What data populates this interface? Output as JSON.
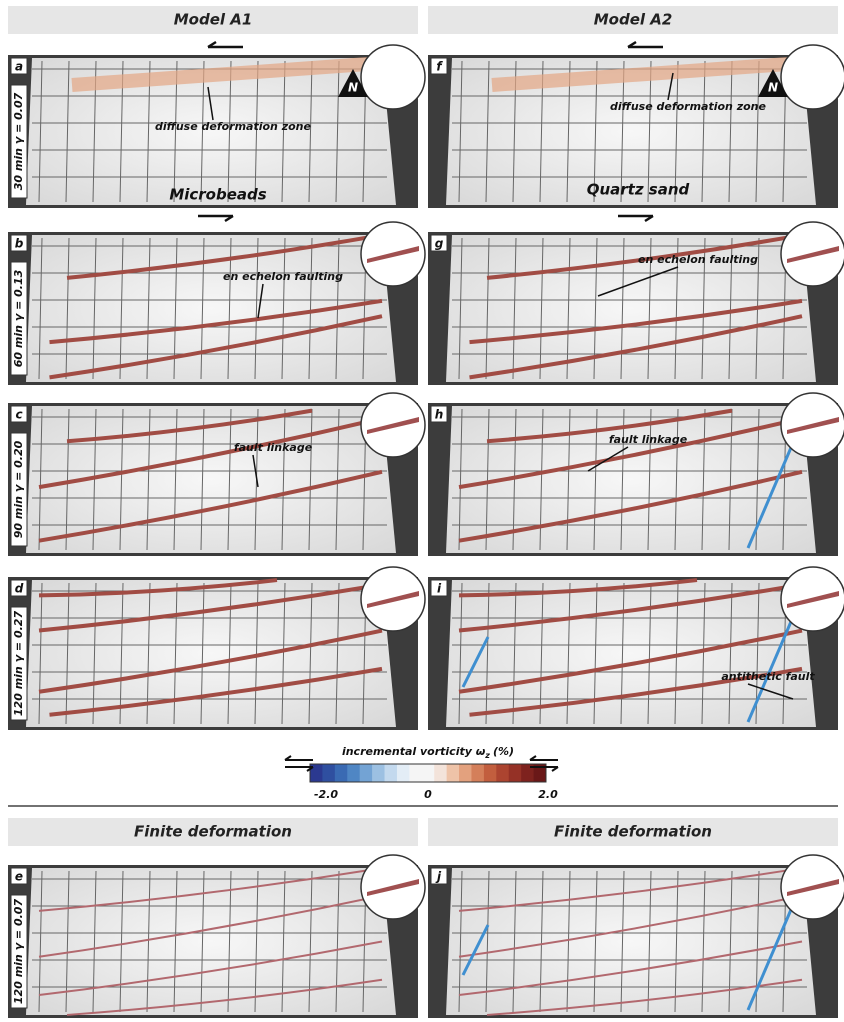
{
  "columns": [
    {
      "header": "Model A1"
    },
    {
      "header": "Model A2"
    }
  ],
  "rows": [
    {
      "left": {
        "letter": "a",
        "side_label": "30 min γ = 0.07",
        "annotations": [
          "diffuse deformation zone",
          "Microbeads"
        ]
      },
      "right": {
        "letter": "f",
        "annotations": [
          "diffuse deformation zone",
          "Quartz sand"
        ]
      }
    },
    {
      "left": {
        "letter": "b",
        "side_label": "60 min γ = 0.13",
        "annotations": [
          "en echelon faulting"
        ]
      },
      "right": {
        "letter": "g",
        "annotations": [
          "en echelon faulting"
        ]
      }
    },
    {
      "left": {
        "letter": "c",
        "side_label": "90 min γ = 0.20",
        "annotations": [
          "fault linkage"
        ]
      },
      "right": {
        "letter": "h",
        "annotations": [
          "fault linkage"
        ]
      }
    },
    {
      "left": {
        "letter": "d",
        "side_label": "120 min γ = 0.27",
        "annotations": []
      },
      "right": {
        "letter": "i",
        "annotations": [
          "antithetic fault"
        ]
      }
    },
    {
      "left": {
        "letter": "e",
        "side_label": "120 min γ = 0.07",
        "annotations": []
      },
      "right": {
        "letter": "j",
        "annotations": []
      }
    }
  ],
  "north": "N",
  "colorbar": {
    "title": "incremental vorticity ω",
    "subscript": "z",
    "unit": "(%)",
    "labels": [
      "-2.0",
      "0",
      "2.0"
    ]
  },
  "finite_headers": [
    "Finite deformation",
    "Finite deformation"
  ]
}
